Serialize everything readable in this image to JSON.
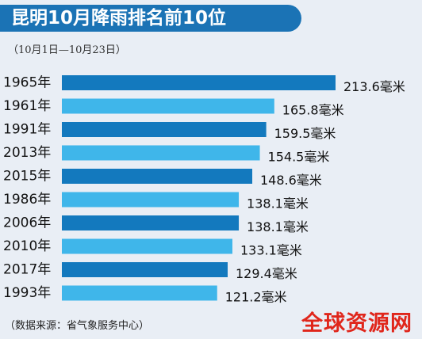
{
  "title": "昆明10月降雨排名前10位",
  "subtitle": "（10月1日—10月23日）",
  "source": "（数据来源：省气象服务中心）",
  "watermark": "全球资源网",
  "colors": {
    "title_bg": "#1b73b5",
    "bar_dark": "#1379be",
    "bar_light": "#3fb6ea",
    "background": "#e9eef5"
  },
  "chart_data": {
    "type": "bar",
    "orientation": "horizontal",
    "categories": [
      "1965年",
      "1961年",
      "1991年",
      "2013年",
      "2015年",
      "1986年",
      "2006年",
      "2010年",
      "2017年",
      "1993年"
    ],
    "values": [
      213.6,
      165.8,
      159.5,
      154.5,
      148.6,
      138.1,
      138.1,
      133.1,
      129.4,
      121.2
    ],
    "value_labels": [
      "213.6毫米",
      "165.8毫米",
      "159.5毫米",
      "154.5毫米",
      "148.6毫米",
      "138.1毫米",
      "138.1毫米",
      "133.1毫米",
      "129.4毫米",
      "121.2毫米"
    ],
    "unit": "毫米",
    "title": "昆明10月降雨排名前10位",
    "xlabel": "",
    "ylabel": "",
    "grid": false
  }
}
